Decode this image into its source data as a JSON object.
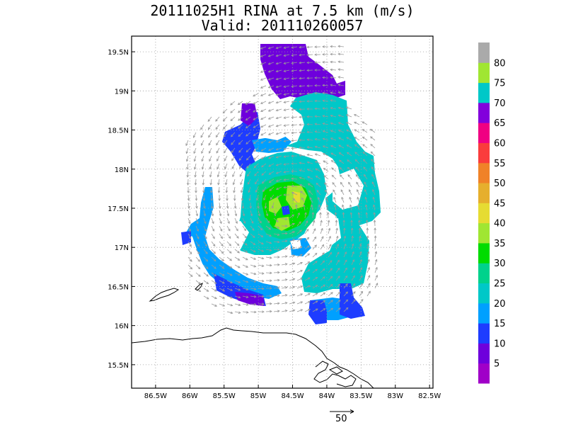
{
  "title": "20111025H1 RINA at 7.5 km (m/s)",
  "subtitle": "Valid: 201110260057",
  "lon_labels": [
    "86.5W",
    "86W",
    "85.5W",
    "85W",
    "84.5W",
    "84W",
    "83.5W",
    "83W",
    "82.5W"
  ],
  "lat_labels": [
    "19.5N",
    "19N",
    "18.5N",
    "18N",
    "17.5N",
    "17N",
    "16.5N",
    "16N",
    "15.5N"
  ],
  "colorbar": {
    "labels": [
      "5",
      "10",
      "15",
      "20",
      "25",
      "30",
      "35",
      "40",
      "45",
      "50",
      "55",
      "60",
      "65",
      "70",
      "75",
      "80"
    ],
    "colors": [
      "#a000c8",
      "#6e00dc",
      "#1e3cff",
      "#00a0ff",
      "#00c8c8",
      "#00d28c",
      "#00dc00",
      "#a0e632",
      "#e6dc32",
      "#e6af2d",
      "#f08228",
      "#fa3c3c",
      "#f00082",
      "#8200dc",
      "#00c8c8",
      "#a0e632",
      "#aaaaaa"
    ]
  },
  "reference_vector": "50",
  "map_extent": {
    "lon": [
      -86.85,
      -82.45
    ],
    "lat": [
      15.2,
      19.7
    ]
  },
  "colors": {
    "coast": "#000000",
    "grid": "#999999",
    "vector": "#999999"
  }
}
